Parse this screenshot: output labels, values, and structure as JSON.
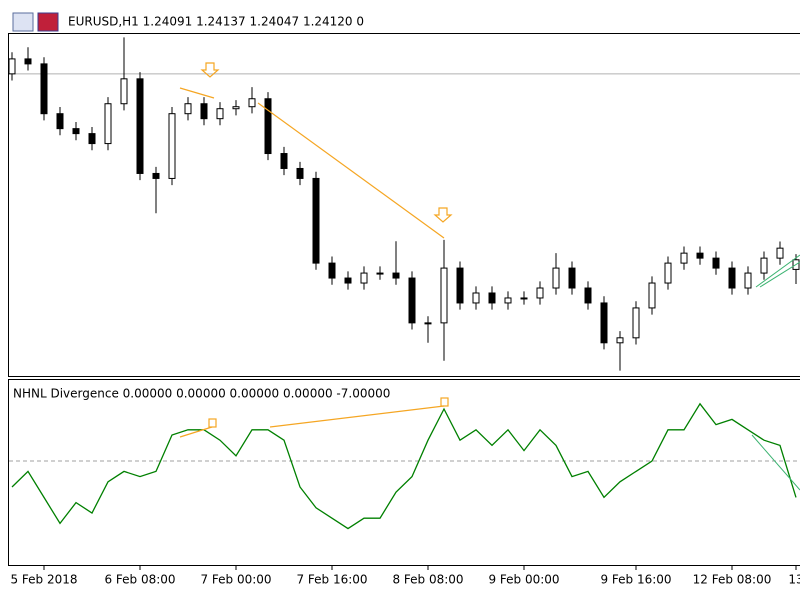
{
  "chart_data": [
    {
      "type": "candlestick",
      "title": "EURUSD,H1  1.24091 1.24137 1.24047 1.24120  0",
      "categories": [
        null,
        null,
        "5 Feb 2018",
        null,
        null,
        null,
        null,
        null,
        "6 Feb 08:00",
        null,
        null,
        null,
        null,
        null,
        "7 Feb 00:00",
        null,
        null,
        null,
        null,
        null,
        "7 Feb 16:00",
        null,
        null,
        null,
        null,
        null,
        "8 Feb 08:00",
        null,
        null,
        null,
        null,
        null,
        "9 Feb 00:00",
        null,
        null,
        null,
        null,
        null,
        null,
        "9 Feb 16:00",
        null,
        null,
        null,
        null,
        null,
        "12 Feb 08:00",
        null,
        null,
        null,
        "13"
      ],
      "open": [
        1.2468,
        1.24725,
        1.2471,
        1.2456,
        1.24515,
        1.245,
        1.2447,
        1.2459,
        1.24665,
        1.2438,
        1.24365,
        1.2456,
        1.2459,
        1.24545,
        1.24575,
        1.24581,
        1.24605,
        1.2444,
        1.24395,
        1.24365,
        1.2411,
        1.24065,
        1.2405,
        1.2408,
        1.2408,
        1.24065,
        1.2393,
        1.2393,
        1.24095,
        1.2399,
        1.2402,
        1.2399,
        1.24005,
        1.24005,
        1.24035,
        1.24095,
        1.24035,
        1.2399,
        1.2387,
        1.23885,
        1.23975,
        1.2405,
        1.2411,
        1.2414,
        1.24125,
        1.24095,
        1.24035,
        1.2408,
        1.24125,
        1.24091
      ],
      "high": [
        1.24745,
        1.2476,
        1.2473,
        1.2458,
        1.24535,
        1.2452,
        1.2461,
        1.2479,
        1.24685,
        1.244,
        1.2458,
        1.2461,
        1.2461,
        1.24595,
        1.24601,
        1.2464,
        1.24625,
        1.2446,
        1.24415,
        1.24385,
        1.2413,
        1.24085,
        1.241,
        1.241,
        1.24176,
        1.24085,
        1.2395,
        1.2418,
        1.24115,
        1.2404,
        1.2404,
        1.24025,
        1.24025,
        1.24055,
        1.2414,
        1.24115,
        1.24055,
        1.2401,
        1.23905,
        1.23995,
        1.2407,
        1.2413,
        1.2416,
        1.2416,
        1.24145,
        1.24115,
        1.241,
        1.24145,
        1.24175,
        1.24137
      ],
      "low": [
        1.2466,
        1.2469,
        1.2454,
        1.24495,
        1.2448,
        1.2445,
        1.2445,
        1.2457,
        1.2436,
        1.2426,
        1.24345,
        1.2454,
        1.24525,
        1.24525,
        1.24555,
        1.24561,
        1.2442,
        1.24375,
        1.24345,
        1.2409,
        1.24045,
        1.2403,
        1.2403,
        1.2406,
        1.24045,
        1.2391,
        1.2387,
        1.23816,
        1.2397,
        1.2397,
        1.2397,
        1.2397,
        1.23985,
        1.23985,
        1.24015,
        1.24015,
        1.2397,
        1.2385,
        1.23786,
        1.23865,
        1.23955,
        1.2403,
        1.2409,
        1.24105,
        1.24075,
        1.24015,
        1.24015,
        1.2406,
        1.24105,
        1.24047
      ],
      "close": [
        1.24725,
        1.2471,
        1.2456,
        1.24515,
        1.245,
        1.2447,
        1.2459,
        1.24665,
        1.2438,
        1.24365,
        1.2456,
        1.2459,
        1.24545,
        1.24575,
        1.24581,
        1.24605,
        1.2444,
        1.24395,
        1.24365,
        1.2411,
        1.24065,
        1.2405,
        1.2408,
        1.2408,
        1.24065,
        1.2393,
        1.2393,
        1.24095,
        1.2399,
        1.2402,
        1.2399,
        1.24005,
        1.24005,
        1.24035,
        1.24095,
        1.24035,
        1.2399,
        1.2387,
        1.23885,
        1.23975,
        1.2405,
        1.2411,
        1.2414,
        1.24125,
        1.24095,
        1.24035,
        1.2408,
        1.24125,
        1.24155,
        1.2412
      ],
      "up_color": "#ffffff",
      "down_color": "#000000",
      "levels": [
        1.2468
      ],
      "ylim": [
        1.2377,
        1.248
      ]
    },
    {
      "type": "line",
      "title": "NHNL Divergence 0.00000 0.00000 0.00000 0.00000 -7.00000",
      "values": [
        -5,
        -2,
        -7,
        -12,
        -8,
        -10,
        -4,
        -2,
        -3,
        -2,
        5,
        6,
        6,
        4,
        1,
        6,
        6,
        4,
        -5,
        -9,
        -11,
        -13,
        -11,
        -11,
        -6,
        -3,
        4,
        10,
        4,
        6,
        3,
        6,
        2,
        6,
        3,
        -3,
        -2,
        -7,
        -4,
        -2,
        0,
        6,
        6,
        11,
        7,
        8,
        6,
        4,
        3,
        -7
      ],
      "color": "#008000",
      "levels": [
        0
      ],
      "ylim": [
        -20,
        15
      ]
    }
  ]
}
